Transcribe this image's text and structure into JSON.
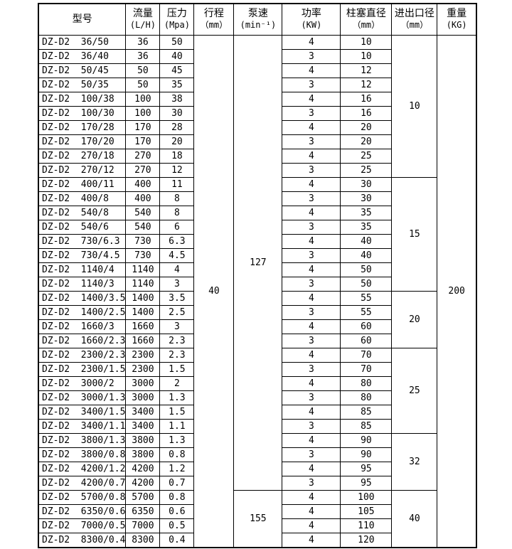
{
  "colors": {
    "background": "#ffffff",
    "border": "#000000",
    "text": "#000000"
  },
  "table": {
    "headers": [
      {
        "name": "model",
        "line1": "型号",
        "line2": ""
      },
      {
        "name": "flow-rate",
        "line1": "流量",
        "line2": "(L/H)"
      },
      {
        "name": "pressure",
        "line1": "压力",
        "line2": "(Mpa)"
      },
      {
        "name": "stroke",
        "line1": "行程",
        "line2": "（mm）"
      },
      {
        "name": "pump-speed",
        "line1": "泵速",
        "line2": "(min⁻¹)"
      },
      {
        "name": "power",
        "line1": "功率",
        "line2": "(KW)"
      },
      {
        "name": "plunger-diameter",
        "line1": "柱塞直径",
        "line2": "（mm）"
      },
      {
        "name": "port-diameter",
        "line1": "进出口径",
        "line2": "（mm）"
      },
      {
        "name": "weight",
        "line1": "重量",
        "line2": "(KG)"
      }
    ],
    "stroke": {
      "value": "40",
      "rowspan": 36
    },
    "weight": {
      "value": "200",
      "rowspan": 36
    },
    "speeds": [
      {
        "value": "127",
        "start": 0,
        "rowspan": 32
      },
      {
        "value": "155",
        "start": 32,
        "rowspan": 4
      }
    ],
    "diameters": [
      {
        "value": "10",
        "start": 0,
        "rowspan": 10
      },
      {
        "value": "15",
        "start": 10,
        "rowspan": 8
      },
      {
        "value": "20",
        "start": 18,
        "rowspan": 4
      },
      {
        "value": "25",
        "start": 22,
        "rowspan": 6
      },
      {
        "value": "32",
        "start": 28,
        "rowspan": 4
      },
      {
        "value": "40",
        "start": 32,
        "rowspan": 4
      }
    ],
    "rows": [
      [
        "DZ-D2  36/50",
        "36",
        "50",
        "4",
        "10"
      ],
      [
        "DZ-D2  36/40",
        "36",
        "40",
        "3",
        "10"
      ],
      [
        "DZ-D2  50/45",
        "50",
        "45",
        "4",
        "12"
      ],
      [
        "DZ-D2  50/35",
        "50",
        "35",
        "3",
        "12"
      ],
      [
        "DZ-D2  100/38",
        "100",
        "38",
        "4",
        "16"
      ],
      [
        "DZ-D2  100/30",
        "100",
        "30",
        "3",
        "16"
      ],
      [
        "DZ-D2  170/28",
        "170",
        "28",
        "4",
        "20"
      ],
      [
        "DZ-D2  170/20",
        "170",
        "20",
        "3",
        "20"
      ],
      [
        "DZ-D2  270/18",
        "270",
        "18",
        "4",
        "25"
      ],
      [
        "DZ-D2  270/12",
        "270",
        "12",
        "3",
        "25"
      ],
      [
        "DZ-D2  400/11",
        "400",
        "11",
        "4",
        "30"
      ],
      [
        "DZ-D2  400/8",
        "400",
        "8",
        "3",
        "30"
      ],
      [
        "DZ-D2  540/8",
        "540",
        "8",
        "4",
        "35"
      ],
      [
        "DZ-D2  540/6",
        "540",
        "6",
        "3",
        "35"
      ],
      [
        "DZ-D2  730/6.3",
        "730",
        "6.3",
        "4",
        "40"
      ],
      [
        "DZ-D2  730/4.5",
        "730",
        "4.5",
        "3",
        "40"
      ],
      [
        "DZ-D2  1140/4",
        "1140",
        "4",
        "4",
        "50"
      ],
      [
        "DZ-D2  1140/3",
        "1140",
        "3",
        "3",
        "50"
      ],
      [
        "DZ-D2  1400/3.5",
        "1400",
        "3.5",
        "4",
        "55"
      ],
      [
        "DZ-D2  1400/2.5",
        "1400",
        "2.5",
        "3",
        "55"
      ],
      [
        "DZ-D2  1660/3",
        "1660",
        "3",
        "4",
        "60"
      ],
      [
        "DZ-D2  1660/2.3",
        "1660",
        "2.3",
        "3",
        "60"
      ],
      [
        "DZ-D2  2300/2.3",
        "2300",
        "2.3",
        "4",
        "70"
      ],
      [
        "DZ-D2  2300/1.5",
        "2300",
        "1.5",
        "3",
        "70"
      ],
      [
        "DZ-D2  3000/2",
        "3000",
        "2",
        "4",
        "80"
      ],
      [
        "DZ-D2  3000/1.3",
        "3000",
        "1.3",
        "3",
        "80"
      ],
      [
        "DZ-D2  3400/1.5",
        "3400",
        "1.5",
        "4",
        "85"
      ],
      [
        "DZ-D2  3400/1.1",
        "3400",
        "1.1",
        "3",
        "85"
      ],
      [
        "DZ-D2  3800/1.3",
        "3800",
        "1.3",
        "4",
        "90"
      ],
      [
        "DZ-D2  3800/0.8",
        "3800",
        "0.8",
        "3",
        "90"
      ],
      [
        "DZ-D2  4200/1.2",
        "4200",
        "1.2",
        "4",
        "95"
      ],
      [
        "DZ-D2  4200/0.7",
        "4200",
        "0.7",
        "3",
        "95"
      ],
      [
        "DZ-D2  5700/0.8",
        "5700",
        "0.8",
        "4",
        "100"
      ],
      [
        "DZ-D2  6350/0.6",
        "6350",
        "0.6",
        "4",
        "105"
      ],
      [
        "DZ-D2  7000/0.5",
        "7000",
        "0.5",
        "4",
        "110"
      ],
      [
        "DZ-D2  8300/0.4",
        "8300",
        "0.4",
        "4",
        "120"
      ]
    ]
  }
}
